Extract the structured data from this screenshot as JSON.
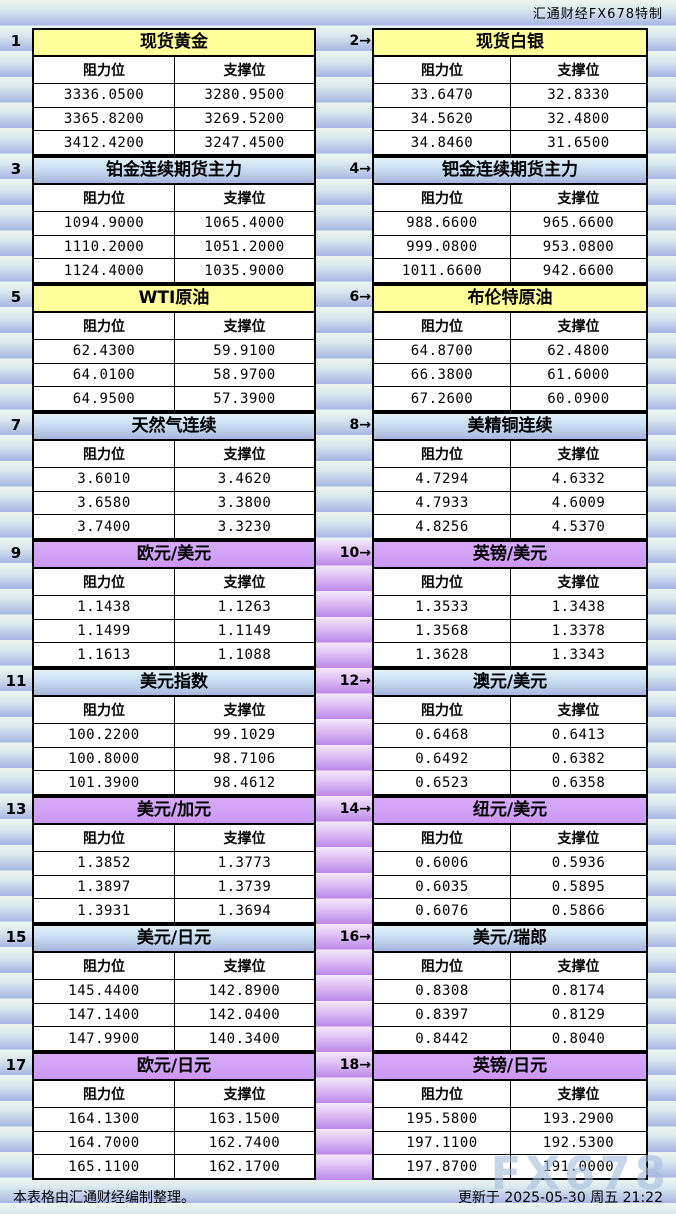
{
  "banner": {
    "title": "汇通财经FX678特制"
  },
  "columns": {
    "resistance": "阻力位",
    "support": "支撑位"
  },
  "footer": {
    "note": "本表格由汇通财经编制整理。",
    "updated": "更新于 2025-05-30 周五 21:22"
  },
  "watermark": "FX678",
  "colors": {
    "yellow_header": "#FFFF9C",
    "blue_header_top": "#E3F2FB",
    "blue_header_bottom": "#A8B7DD",
    "purple_header": "#CB97F3",
    "stripe_top": "#EEF6EF",
    "stripe_bottom": "#A8B4E5",
    "purple_stripe_top": "#F3E9FC",
    "purple_stripe_bottom": "#BD87E8"
  },
  "panels": [
    {
      "label": "1",
      "title": "现货黄金",
      "theme": "yellow",
      "rows": [
        {
          "r": "3336.0500",
          "s": "3280.9500"
        },
        {
          "r": "3365.8200",
          "s": "3269.5200"
        },
        {
          "r": "3412.4200",
          "s": "3247.4500"
        }
      ]
    },
    {
      "label": "2→",
      "title": "现货白银",
      "theme": "yellow",
      "rows": [
        {
          "r": "33.6470",
          "s": "32.8330"
        },
        {
          "r": "34.5620",
          "s": "32.4800"
        },
        {
          "r": "34.8460",
          "s": "31.6500"
        }
      ]
    },
    {
      "label": "3",
      "title": "铂金连续期货主力",
      "theme": "blue",
      "rows": [
        {
          "r": "1094.9000",
          "s": "1065.4000"
        },
        {
          "r": "1110.2000",
          "s": "1051.2000"
        },
        {
          "r": "1124.4000",
          "s": "1035.9000"
        }
      ]
    },
    {
      "label": "4→",
      "title": "钯金连续期货主力",
      "theme": "blue",
      "rows": [
        {
          "r": "988.6600",
          "s": "965.6600"
        },
        {
          "r": "999.0800",
          "s": "953.0800"
        },
        {
          "r": "1011.6600",
          "s": "942.6600"
        }
      ]
    },
    {
      "label": "5",
      "title": "WTI原油",
      "theme": "yellow",
      "rows": [
        {
          "r": "62.4300",
          "s": "59.9100"
        },
        {
          "r": "64.0100",
          "s": "58.9700"
        },
        {
          "r": "64.9500",
          "s": "57.3900"
        }
      ]
    },
    {
      "label": "6→",
      "title": "布伦特原油",
      "theme": "yellow",
      "rows": [
        {
          "r": "64.8700",
          "s": "62.4800"
        },
        {
          "r": "66.3800",
          "s": "61.6000"
        },
        {
          "r": "67.2600",
          "s": "60.0900"
        }
      ]
    },
    {
      "label": "7",
      "title": "天然气连续",
      "theme": "blue",
      "rows": [
        {
          "r": "3.6010",
          "s": "3.4620"
        },
        {
          "r": "3.6580",
          "s": "3.3800"
        },
        {
          "r": "3.7400",
          "s": "3.3230"
        }
      ]
    },
    {
      "label": "8→",
      "title": "美精铜连续",
      "theme": "blue",
      "rows": [
        {
          "r": "4.7294",
          "s": "4.6332"
        },
        {
          "r": "4.7933",
          "s": "4.6009"
        },
        {
          "r": "4.8256",
          "s": "4.5370"
        }
      ]
    },
    {
      "label": "9",
      "title": "欧元/美元",
      "theme": "purple",
      "rows": [
        {
          "r": "1.1438",
          "s": "1.1263"
        },
        {
          "r": "1.1499",
          "s": "1.1149"
        },
        {
          "r": "1.1613",
          "s": "1.1088"
        }
      ]
    },
    {
      "label": "10→",
      "title": "英镑/美元",
      "theme": "purple",
      "rows": [
        {
          "r": "1.3533",
          "s": "1.3438"
        },
        {
          "r": "1.3568",
          "s": "1.3378"
        },
        {
          "r": "1.3628",
          "s": "1.3343"
        }
      ]
    },
    {
      "label": "11",
      "title": "美元指数",
      "theme": "blue",
      "rows": [
        {
          "r": "100.2200",
          "s": "99.1029"
        },
        {
          "r": "100.8000",
          "s": "98.7106"
        },
        {
          "r": "101.3900",
          "s": "98.4612"
        }
      ]
    },
    {
      "label": "12→",
      "title": "澳元/美元",
      "theme": "blue",
      "rows": [
        {
          "r": "0.6468",
          "s": "0.6413"
        },
        {
          "r": "0.6492",
          "s": "0.6382"
        },
        {
          "r": "0.6523",
          "s": "0.6358"
        }
      ]
    },
    {
      "label": "13",
      "title": "美元/加元",
      "theme": "purple",
      "rows": [
        {
          "r": "1.3852",
          "s": "1.3773"
        },
        {
          "r": "1.3897",
          "s": "1.3739"
        },
        {
          "r": "1.3931",
          "s": "1.3694"
        }
      ]
    },
    {
      "label": "14→",
      "title": "纽元/美元",
      "theme": "purple",
      "rows": [
        {
          "r": "0.6006",
          "s": "0.5936"
        },
        {
          "r": "0.6035",
          "s": "0.5895"
        },
        {
          "r": "0.6076",
          "s": "0.5866"
        }
      ]
    },
    {
      "label": "15",
      "title": "美元/日元",
      "theme": "blue",
      "rows": [
        {
          "r": "145.4400",
          "s": "142.8900"
        },
        {
          "r": "147.1400",
          "s": "142.0400"
        },
        {
          "r": "147.9900",
          "s": "140.3400"
        }
      ]
    },
    {
      "label": "16→",
      "title": "美元/瑞郎",
      "theme": "blue",
      "rows": [
        {
          "r": "0.8308",
          "s": "0.8174"
        },
        {
          "r": "0.8397",
          "s": "0.8129"
        },
        {
          "r": "0.8442",
          "s": "0.8040"
        }
      ]
    },
    {
      "label": "17",
      "title": "欧元/日元",
      "theme": "purple",
      "rows": [
        {
          "r": "164.1300",
          "s": "163.1500"
        },
        {
          "r": "164.7000",
          "s": "162.7400"
        },
        {
          "r": "165.1100",
          "s": "162.1700"
        }
      ]
    },
    {
      "label": "18→",
      "title": "英镑/日元",
      "theme": "purple",
      "rows": [
        {
          "r": "195.5800",
          "s": "193.2900"
        },
        {
          "r": "197.1100",
          "s": "192.5300"
        },
        {
          "r": "197.8700",
          "s": "191.0000"
        }
      ]
    }
  ]
}
